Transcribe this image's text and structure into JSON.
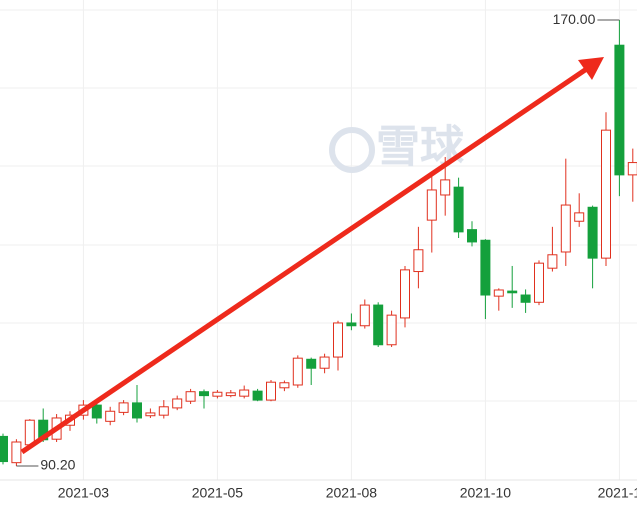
{
  "chart_data": {
    "type": "candlestick",
    "watermark": "雪球",
    "categories": [
      null,
      null,
      null,
      null,
      null,
      null,
      "2021-03",
      null,
      null,
      null,
      null,
      null,
      null,
      null,
      null,
      null,
      "2021-05",
      null,
      null,
      null,
      null,
      null,
      null,
      null,
      null,
      null,
      "2021-08",
      null,
      null,
      null,
      null,
      null,
      null,
      null,
      null,
      null,
      "2021-10",
      null,
      null,
      null,
      null,
      null,
      null,
      null,
      null,
      null,
      "2021-1",
      null
    ],
    "open": [
      95.5,
      90.8,
      94,
      98.4,
      95,
      97.5,
      99.3,
      101.1,
      98.2,
      99.8,
      101.5,
      99.2,
      99.3,
      100.6,
      101.8,
      103.5,
      102.7,
      102.8,
      102.7,
      103.6,
      102,
      104.2,
      104.7,
      109.3,
      107.7,
      109.7,
      115.8,
      115.3,
      119,
      111.9,
      116.7,
      125,
      134.2,
      138.7,
      140.1,
      132.5,
      130.6,
      120.6,
      121.5,
      120.8,
      119.5,
      125.6,
      128.5,
      134,
      136.5,
      127.4,
      165.5,
      142.3
    ],
    "high": [
      96,
      95,
      98.6,
      100.5,
      99.5,
      100,
      102,
      101.5,
      100.8,
      102,
      104.7,
      100.5,
      102,
      102.8,
      104,
      103.9,
      103.8,
      103.8,
      104.6,
      104,
      105.6,
      105.5,
      110,
      109.6,
      110.3,
      116.2,
      117.5,
      120,
      119.5,
      118,
      126,
      133,
      142.5,
      145.5,
      141.8,
      134,
      130.8,
      122,
      126,
      121.8,
      127,
      133,
      145.2,
      139,
      136.8,
      153.5,
      170,
      147
    ],
    "low": [
      90.5,
      90.2,
      93.5,
      94.5,
      94.5,
      96.5,
      98.5,
      97.8,
      97.5,
      99.3,
      98,
      98.8,
      98.7,
      100.2,
      101.3,
      100.5,
      102.3,
      102.5,
      102.3,
      101.8,
      101.8,
      103.6,
      104.2,
      104.7,
      106.8,
      107.3,
      114.5,
      114.8,
      111.5,
      111.5,
      115,
      122,
      128.4,
      135,
      131,
      129.5,
      116.5,
      118,
      118.5,
      117.6,
      119,
      125,
      126,
      133,
      122,
      126,
      138.5,
      137.5
    ],
    "close": [
      91,
      94.5,
      98.4,
      94.9,
      98.8,
      99.3,
      101.1,
      98.8,
      100,
      101.5,
      98.8,
      99.7,
      100.8,
      102.2,
      103.5,
      102.8,
      103.4,
      103.3,
      103.8,
      102,
      105.2,
      105.1,
      109.5,
      107.7,
      109.7,
      115.8,
      115.3,
      119,
      111.9,
      117.2,
      125.3,
      128.9,
      139.6,
      141.4,
      132.1,
      130.3,
      120.8,
      121.7,
      121.2,
      119.5,
      126.5,
      128,
      136.9,
      135.5,
      127.4,
      150.3,
      142.3,
      144.5
    ],
    "up_color": "#e0301e",
    "down_color": "#14a03c",
    "ylim": [
      87.7,
      171.8
    ],
    "annotations": {
      "max": {
        "value": 170,
        "label": "170.00"
      },
      "min": {
        "value": 90.2,
        "label": "90.20"
      }
    }
  }
}
